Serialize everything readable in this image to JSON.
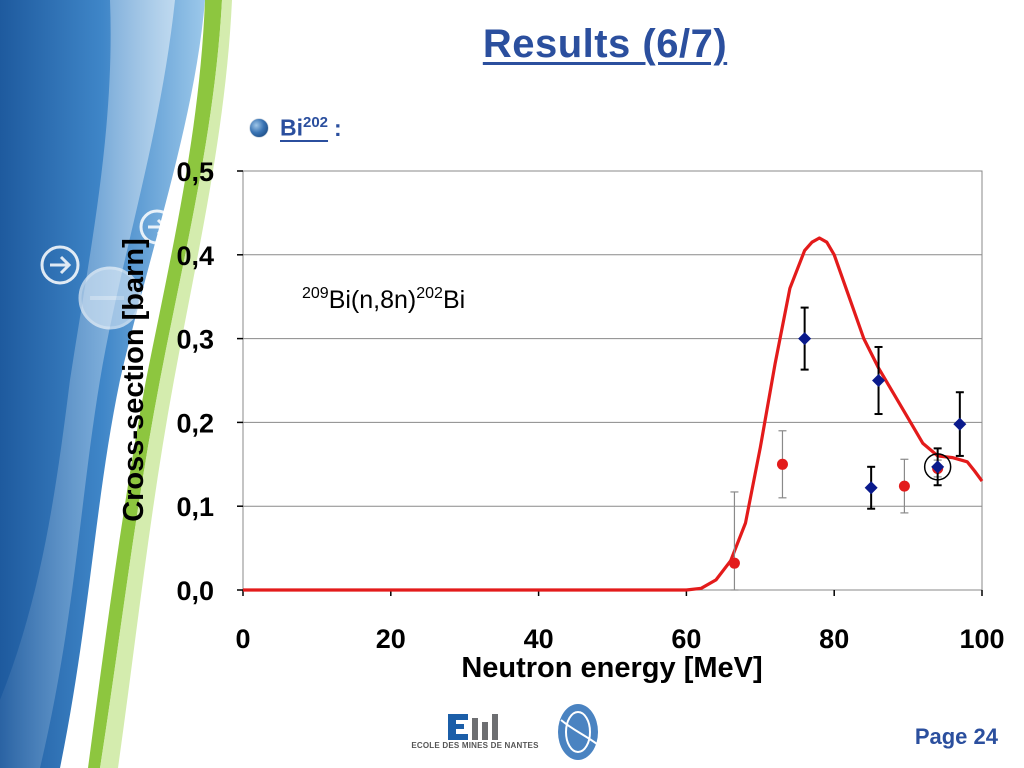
{
  "slide": {
    "title": "Results (6/7)",
    "bullet": {
      "label": "Bi",
      "superscript": "202",
      "suffix": ":"
    },
    "page_label": "Page 24",
    "logo_text": "ECOLE DES MINES DE NANTES",
    "logo_mark": "EM"
  },
  "colors": {
    "title": "#2b4f9e",
    "curve": "#e31b1b",
    "series_blue": "#0a1a8c",
    "series_red": "#e31b1b",
    "error_bar_blue": "#000000",
    "error_bar_red": "#8a8a8a",
    "green_band": "#8dc63f",
    "blue_bg": "#2f6fb3"
  },
  "chart_data": {
    "type": "scatter",
    "title": "",
    "annotation": {
      "pre": "209",
      "mid": "Bi(n,8n)",
      "sup": "202",
      "post": "Bi"
    },
    "xlabel": "Neutron energy [MeV]",
    "ylabel": "Cross-section [barn]",
    "xlim": [
      0,
      100
    ],
    "ylim": [
      0,
      0.5
    ],
    "xticks": [
      0,
      20,
      40,
      60,
      80,
      100
    ],
    "xtick_labels": [
      "0",
      "20",
      "40",
      "60",
      "80",
      "100"
    ],
    "yticks": [
      0,
      0.1,
      0.2,
      0.3,
      0.4,
      0.5
    ],
    "ytick_labels": [
      "0,0",
      "0,1",
      "0,2",
      "0,3",
      "0,4",
      "0,5"
    ],
    "grid": "horizontal",
    "curve": {
      "x": [
        0,
        20,
        40,
        55,
        60,
        62,
        64,
        66,
        68,
        70,
        72,
        74,
        76,
        77,
        78,
        79,
        80,
        82,
        84,
        86,
        88,
        90,
        92,
        94,
        96,
        98,
        99,
        100
      ],
      "y": [
        0,
        0,
        0,
        0,
        0,
        0.002,
        0.012,
        0.035,
        0.08,
        0.17,
        0.27,
        0.36,
        0.405,
        0.415,
        0.42,
        0.415,
        0.4,
        0.35,
        0.3,
        0.265,
        0.235,
        0.205,
        0.175,
        0.16,
        0.158,
        0.153,
        0.142,
        0.13
      ]
    },
    "series": [
      {
        "marker": "diamond",
        "points": [
          {
            "x": 76,
            "y": 0.3,
            "err": 0.037
          },
          {
            "x": 85,
            "y": 0.122,
            "err": 0.025
          },
          {
            "x": 86,
            "y": 0.25,
            "err": 0.04
          },
          {
            "x": 94,
            "y": 0.147,
            "err": 0.022
          },
          {
            "x": 97,
            "y": 0.198,
            "err": 0.038
          }
        ]
      },
      {
        "marker": "circle",
        "points": [
          {
            "x": 66.5,
            "y": 0.032,
            "err_up": 0.085,
            "err_down": 0.032
          },
          {
            "x": 73,
            "y": 0.15,
            "err": 0.04
          },
          {
            "x": 89.5,
            "y": 0.124,
            "err": 0.032
          },
          {
            "x": 94,
            "y": 0.145,
            "err": 0.01
          }
        ]
      }
    ],
    "highlight": {
      "x": 94,
      "y": 0.147
    }
  }
}
